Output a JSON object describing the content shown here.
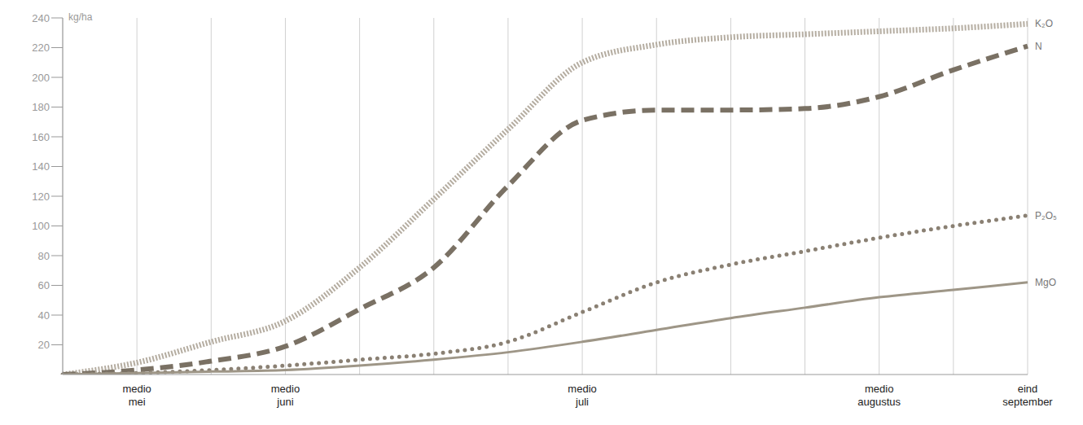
{
  "chart_data": {
    "type": "line",
    "y_label": "kg/ha",
    "categories": [
      null,
      "medio mei",
      null,
      "medio juni",
      null,
      null,
      null,
      "medio juli",
      null,
      null,
      null,
      "medio augustus",
      null,
      "eind september"
    ],
    "ylim": [
      0,
      240
    ],
    "yticks": [
      20,
      40,
      60,
      80,
      100,
      120,
      140,
      160,
      180,
      200,
      220,
      240
    ],
    "grid": true,
    "series": [
      {
        "name": "K₂O",
        "color": "#b5ada1",
        "line_style": "dotted",
        "values": [
          0,
          8,
          22,
          36,
          72,
          118,
          165,
          210,
          222,
          227,
          229,
          231,
          233,
          236
        ]
      },
      {
        "name": "N",
        "color": "#7a7164",
        "line_style": "dashed",
        "values": [
          0,
          3,
          9,
          19,
          44,
          72,
          127,
          171,
          178,
          178,
          179,
          187,
          205,
          221
        ]
      },
      {
        "name": "P₂O₅",
        "color": "#8a8073",
        "line_style": "dots",
        "values": [
          0,
          1,
          3,
          6,
          10,
          14,
          22,
          42,
          62,
          74,
          83,
          92,
          100,
          107
        ]
      },
      {
        "name": "MgO",
        "color": "#9e9687",
        "line_style": "solid",
        "values": [
          0,
          1,
          2,
          3,
          6,
          10,
          15,
          22,
          30,
          38,
          45,
          52,
          57,
          62
        ]
      }
    ]
  }
}
